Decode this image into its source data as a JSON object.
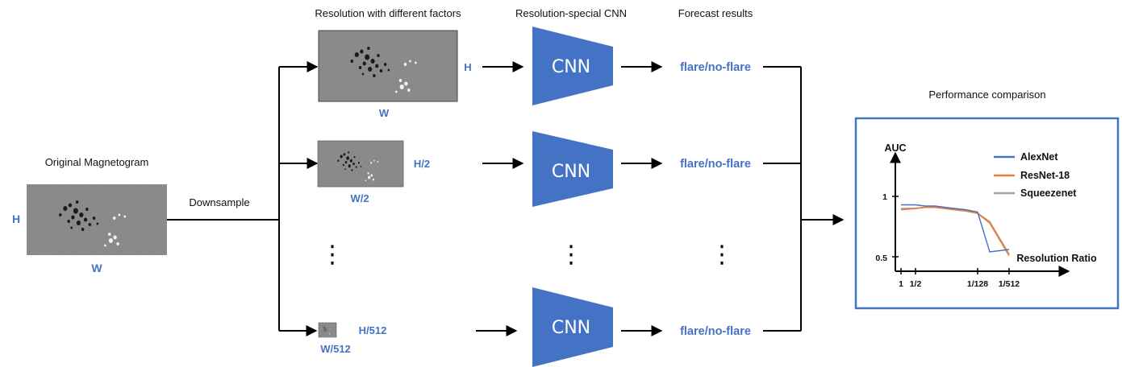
{
  "original": {
    "title": "Original Magnetogram",
    "h": "H",
    "w": "W"
  },
  "downsample": "Downsample",
  "headers": {
    "resolution": "Resolution with different factors",
    "cnn": "Resolution-special CNN",
    "forecast": "Forecast results",
    "performance": "Performance comparison"
  },
  "rows": [
    {
      "h": "H",
      "w": "W",
      "cnn": "CNN",
      "result": "flare/no-flare"
    },
    {
      "h": "H/2",
      "w": "W/2",
      "cnn": "CNN",
      "result": "flare/no-flare"
    },
    {
      "h": "H/512",
      "w": "W/512",
      "cnn": "CNN",
      "result": "flare/no-flare"
    }
  ],
  "ellipsis": "⋮",
  "colors": {
    "accent": "#4472C4",
    "alexnet": "#4472C4",
    "resnet": "#ED7D31",
    "squeezenet": "#A5A5A5"
  },
  "chart_data": {
    "type": "line",
    "ylabel": "AUC",
    "xlabel": "Resolution Ratio",
    "yticks": [
      "1",
      "0.5"
    ],
    "xticks": [
      "1",
      "1/2",
      "1/128",
      "1/512"
    ],
    "legend": [
      "AlexNet",
      "ResNet-18",
      "Squeezenet"
    ],
    "x": [
      "1",
      "1/2",
      "1/4",
      "1/8",
      "1/16",
      "1/32",
      "1/64",
      "1/128",
      "1/256",
      "1/512"
    ],
    "series": [
      {
        "name": "AlexNet",
        "values": [
          0.93,
          0.93,
          0.92,
          0.92,
          0.91,
          0.9,
          0.89,
          0.87,
          0.54,
          0.56
        ]
      },
      {
        "name": "ResNet-18",
        "values": [
          0.89,
          0.9,
          0.91,
          0.91,
          0.9,
          0.89,
          0.88,
          0.86,
          0.78,
          0.51
        ]
      },
      {
        "name": "Squeezenet",
        "values": [
          0.9,
          0.9,
          0.91,
          0.91,
          0.9,
          0.89,
          0.88,
          0.86,
          0.79,
          0.52
        ]
      }
    ]
  }
}
